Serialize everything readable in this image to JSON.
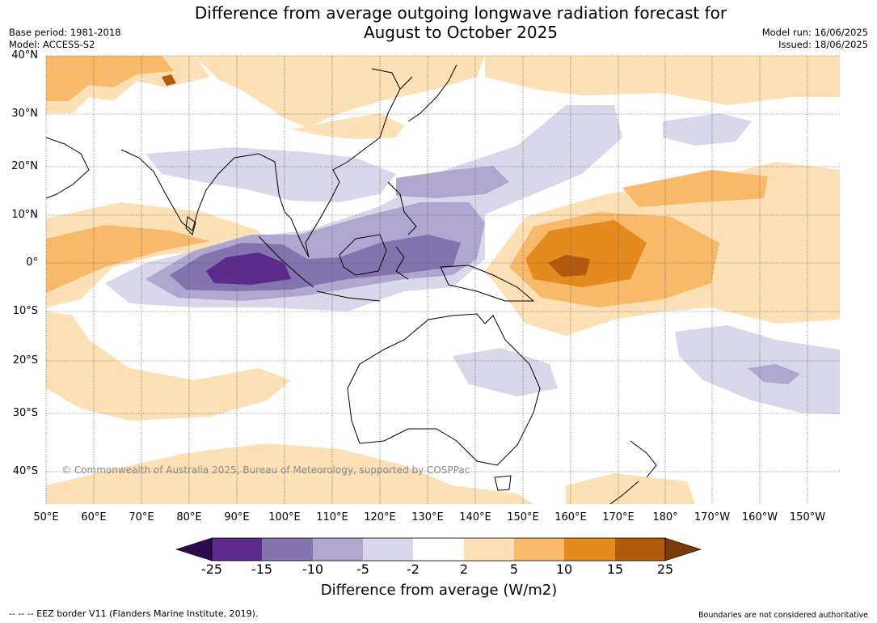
{
  "title": "Difference from average outgoing longwave radiation forecast for August to October 2025",
  "title_lines": [
    "Difference from average outgoing longwave radiation forecast for",
    "August to October 2025"
  ],
  "base_period": "Base period: 1981-2018",
  "model": "Model: ACCESS-S2",
  "model_run": "Model run: 16/06/2025",
  "issued": "Issued: 18/06/2025",
  "lat_labels": [
    "40°N",
    "30°N",
    "20°N",
    "10°N",
    "0°",
    "10°S",
    "20°S",
    "30°S",
    "40°S"
  ],
  "lon_labels": [
    "50°E",
    "60°E",
    "70°E",
    "80°E",
    "90°E",
    "100°E",
    "110°E",
    "120°E",
    "130°E",
    "140°E",
    "150°E",
    "160°E",
    "170°E",
    "180°",
    "170°W",
    "160°W",
    "150°W"
  ],
  "copyright": "© Commonwealth of Australia 2025, Bureau of Meteorology, supported by COSPPac",
  "colorbar": {
    "ticks": [
      "-25",
      "-15",
      "-10",
      "-5",
      "-2",
      "2",
      "5",
      "10",
      "15",
      "25"
    ],
    "colors": [
      "#5b2a8a",
      "#8374b0",
      "#b0a7d0",
      "#d9d8ea",
      "#ffffff",
      "#fde0b5",
      "#f9b96b",
      "#e48a1e",
      "#b35b0c"
    ],
    "under_color": "#2d0a4e",
    "over_color": "#7a3a0a",
    "label": "Difference from average (W/m2)"
  },
  "footer_left": "--  --  -- EEZ border V11 (Flanders Marine Institute, 2019).",
  "footer_right": "Boundaries are not considered authoritative"
}
